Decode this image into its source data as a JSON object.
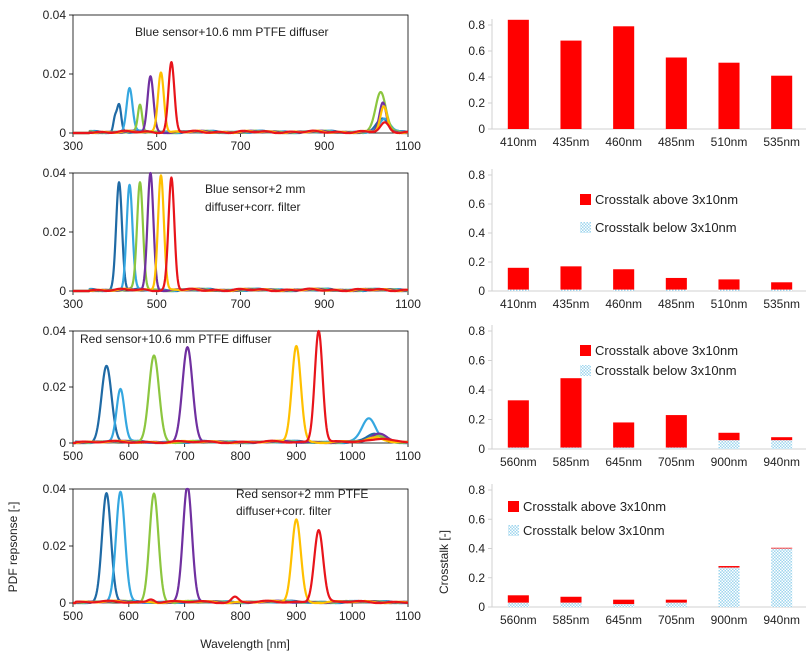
{
  "colors": {
    "blue_sensor": [
      "#1f6aa5",
      "#35a7e0",
      "#8cc63f",
      "#7030a0",
      "#ffc000",
      "#e8141b"
    ],
    "red_sensor": [
      "#1f6aa5",
      "#35a7e0",
      "#8cc63f",
      "#7030a0",
      "#ffc000",
      "#e8141b"
    ],
    "bar_above": "#ff0000",
    "bar_below_fill": "#9fd6ee",
    "bar_below_line": "#ffffff",
    "axis": "#d0d0d0",
    "plot_border": "#000000"
  },
  "labels": {
    "left_ylabel": "PDF repsonse [-]",
    "left_xlabel": "Wavelength [nm]",
    "right_ylabel": "Crosstalk [-]"
  },
  "chart_data": [
    {
      "type": "line",
      "annotation": [
        "Blue sensor+10.6 mm PTFE diffuser"
      ],
      "xlim": [
        300,
        1100
      ],
      "xticks": [
        "300",
        "500",
        "700",
        "900",
        "1100"
      ],
      "ylim": [
        0,
        0.04
      ],
      "yticks": [
        "0",
        "0.02",
        "0.04"
      ],
      "series": [
        {
          "peaks": [
            [
              410,
              0.0092,
              5
            ],
            [
              400,
              0.0045,
              4
            ],
            [
              1040,
              0.0042,
              15
            ]
          ]
        },
        {
          "peaks": [
            [
              435,
              0.015,
              7
            ],
            [
              1045,
              0.0045,
              12
            ]
          ]
        },
        {
          "peaks": [
            [
              460,
              0.009,
              5
            ],
            [
              1035,
              0.0135,
              12
            ]
          ]
        },
        {
          "peaks": [
            [
              485,
              0.0188,
              7
            ],
            [
              1040,
              0.01,
              8
            ]
          ]
        },
        {
          "peaks": [
            [
              510,
              0.0205,
              7
            ],
            [
              1042,
              0.0085,
              8
            ]
          ]
        },
        {
          "peaks": [
            [
              535,
              0.0235,
              7
            ],
            [
              1045,
              0.003,
              10
            ]
          ]
        }
      ]
    },
    {
      "type": "line",
      "annotation": [
        "Blue sensor+2 mm",
        "diffuser+corr. filter"
      ],
      "xlim": [
        300,
        1100
      ],
      "xticks": [
        "300",
        "500",
        "700",
        "900",
        "1100"
      ],
      "ylim": [
        0,
        0.04
      ],
      "yticks": [
        "0",
        "0.02",
        "0.04"
      ],
      "series": [
        {
          "peaks": [
            [
              410,
              0.0365,
              7
            ]
          ]
        },
        {
          "peaks": [
            [
              435,
              0.0355,
              7
            ]
          ]
        },
        {
          "peaks": [
            [
              460,
              0.0365,
              7
            ]
          ]
        },
        {
          "peaks": [
            [
              485,
              0.0395,
              7
            ]
          ]
        },
        {
          "peaks": [
            [
              510,
              0.0392,
              7
            ]
          ]
        },
        {
          "peaks": [
            [
              535,
              0.038,
              7
            ]
          ]
        }
      ]
    },
    {
      "type": "line",
      "annotation": [
        "Red sensor+10.6  mm PTFE diffuser"
      ],
      "xlim": [
        500,
        1100
      ],
      "xticks": [
        "500",
        "600",
        "700",
        "800",
        "900",
        "1000",
        "1100"
      ],
      "ylim": [
        0,
        0.04
      ],
      "yticks": [
        "0",
        "0.02",
        "0.04"
      ],
      "series": [
        {
          "peaks": [
            [
              560,
              0.027,
              9
            ],
            [
              1040,
              0.003,
              12
            ]
          ]
        },
        {
          "peaks": [
            [
              585,
              0.019,
              7
            ],
            [
              1030,
              0.0085,
              12
            ]
          ]
        },
        {
          "peaks": [
            [
              645,
              0.031,
              9
            ],
            [
              1045,
              0.002,
              15
            ]
          ]
        },
        {
          "peaks": [
            [
              705,
              0.0335,
              9
            ],
            [
              1050,
              0.0028,
              15
            ]
          ]
        },
        {
          "peaks": [
            [
              900,
              0.0345,
              8
            ],
            [
              1045,
              0.0015,
              15
            ]
          ]
        },
        {
          "peaks": [
            [
              940,
              0.04,
              7
            ],
            [
              1055,
              0.0015,
              15
            ]
          ]
        }
      ]
    },
    {
      "type": "line",
      "annotation": [
        "Red sensor+2 mm PTFE",
        "diffuser+corr. filter"
      ],
      "xlim": [
        500,
        1100
      ],
      "xticks": [
        "500",
        "600",
        "700",
        "800",
        "900",
        "1000",
        "1100"
      ],
      "ylim": [
        0,
        0.04
      ],
      "yticks": [
        "0",
        "0.02",
        "0.04"
      ],
      "xlabel": "Wavelength [nm]",
      "ylabel": "PDF repsonse [-]",
      "series": [
        {
          "peaks": [
            [
              560,
              0.038,
              8
            ]
          ]
        },
        {
          "peaks": [
            [
              585,
              0.0385,
              8
            ]
          ]
        },
        {
          "peaks": [
            [
              645,
              0.038,
              8
            ]
          ]
        },
        {
          "peaks": [
            [
              705,
              0.0405,
              8
            ]
          ]
        },
        {
          "peaks": [
            [
              900,
              0.029,
              8
            ]
          ]
        },
        {
          "peaks": [
            [
              940,
              0.0255,
              8
            ],
            [
              790,
              0.0018,
              6
            ],
            [
              640,
              0.0012,
              6
            ]
          ]
        }
      ]
    },
    {
      "type": "bar",
      "categories": [
        "410nm",
        "435nm",
        "460nm",
        "485nm",
        "510nm",
        "535nm"
      ],
      "ylim": [
        0,
        0.8
      ],
      "yticks": [
        "0",
        "0.2",
        "0.4",
        "0.6",
        "0.8"
      ],
      "series": [
        {
          "values": [
            0.84,
            0.68,
            0.79,
            0.55,
            0.51,
            0.41
          ]
        }
      ],
      "legend": []
    },
    {
      "type": "bar",
      "stacked": true,
      "categories": [
        "410nm",
        "435nm",
        "460nm",
        "485nm",
        "510nm",
        "535nm"
      ],
      "ylim": [
        0,
        0.8
      ],
      "yticks": [
        "0",
        "0.2",
        "0.4",
        "0.6",
        "0.8"
      ],
      "series": [
        {
          "name": "Crosstalk below 3x10nm",
          "values": [
            0.01,
            0.01,
            0.01,
            0.01,
            0.01,
            0.01
          ]
        },
        {
          "name": "Crosstalk above 3x10nm",
          "values": [
            0.15,
            0.16,
            0.14,
            0.08,
            0.07,
            0.05
          ]
        }
      ],
      "legend": [
        "Crosstalk above 3x10nm",
        "Crosstalk below 3x10nm"
      ]
    },
    {
      "type": "bar",
      "stacked": true,
      "categories": [
        "560nm",
        "585nm",
        "645nm",
        "705nm",
        "900nm",
        "940nm"
      ],
      "ylim": [
        0,
        0.8
      ],
      "yticks": [
        "0",
        "0.2",
        "0.4",
        "0.6",
        "0.8"
      ],
      "series": [
        {
          "name": "Crosstalk below 3x10nm",
          "values": [
            0.01,
            0.01,
            0.01,
            0.01,
            0.06,
            0.06
          ]
        },
        {
          "name": "Crosstalk above 3x10nm",
          "values": [
            0.32,
            0.47,
            0.17,
            0.22,
            0.05,
            0.02
          ]
        }
      ],
      "legend": [
        "Crosstalk above 3x10nm",
        "Crosstalk below 3x10nm"
      ]
    },
    {
      "type": "bar",
      "stacked": true,
      "categories": [
        "560nm",
        "585nm",
        "645nm",
        "705nm",
        "900nm",
        "940nm"
      ],
      "ylim": [
        0,
        0.8
      ],
      "yticks": [
        "0",
        "0.2",
        "0.4",
        "0.6",
        "0.8"
      ],
      "ylabel": "Crosstalk [-]",
      "series": [
        {
          "name": "Crosstalk below 3x10nm",
          "values": [
            0.03,
            0.03,
            0.02,
            0.03,
            0.27,
            0.4
          ]
        },
        {
          "name": "Crosstalk above 3x10nm",
          "values": [
            0.05,
            0.04,
            0.03,
            0.02,
            0.01,
            0.005
          ]
        }
      ],
      "legend": [
        "Crosstalk above 3x10nm",
        "Crosstalk below 3x10nm"
      ]
    }
  ]
}
